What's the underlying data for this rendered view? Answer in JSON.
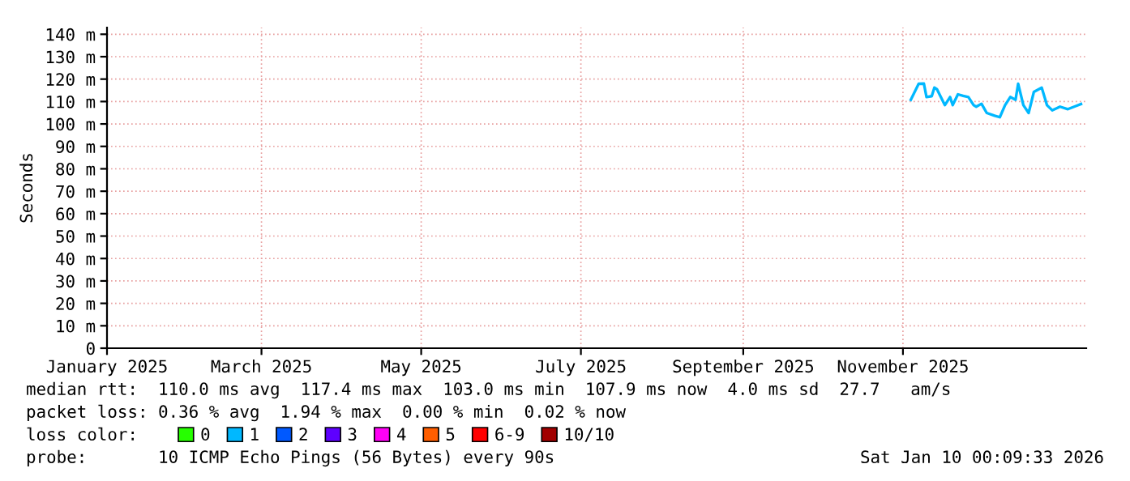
{
  "chart_data": {
    "type": "line",
    "ylabel": "Seconds",
    "xlim": [
      "2025-01-01",
      "2026-01-10"
    ],
    "xticks": [
      {
        "value": "2025-01-01",
        "label": "January 2025"
      },
      {
        "value": "2025-03-01",
        "label": "March 2025"
      },
      {
        "value": "2025-05-01",
        "label": "May 2025"
      },
      {
        "value": "2025-07-01",
        "label": "July 2025"
      },
      {
        "value": "2025-09-01",
        "label": "September 2025"
      },
      {
        "value": "2025-11-01",
        "label": "November 2025"
      }
    ],
    "ylim": [
      0,
      143
    ],
    "yticks": [
      0,
      {
        "value": 10,
        "label": "10 m"
      },
      {
        "value": 20,
        "label": "20 m"
      },
      {
        "value": 30,
        "label": "30 m"
      },
      {
        "value": 40,
        "label": "40 m"
      },
      {
        "value": 50,
        "label": "50 m"
      },
      {
        "value": 60,
        "label": "60 m"
      },
      {
        "value": 70,
        "label": "70 m"
      },
      {
        "value": 80,
        "label": "80 m"
      },
      {
        "value": 90,
        "label": "90 m"
      },
      {
        "value": 100,
        "label": "100 m"
      },
      {
        "value": 110,
        "label": "110 m"
      },
      {
        "value": 120,
        "label": "120 m"
      },
      {
        "value": 130,
        "label": "130 m"
      },
      {
        "value": 140,
        "label": "140 m"
      }
    ],
    "grid": true,
    "legend": "bottom",
    "legend_title": "loss color:",
    "series": [
      {
        "name": "0",
        "color": "#26ff00"
      },
      {
        "name": "1",
        "color": "#00b8ff",
        "x": [
          "2025-11-04",
          "2025-11-07",
          "2025-11-09",
          "2025-11-10",
          "2025-11-12",
          "2025-11-13",
          "2025-11-14",
          "2025-11-17",
          "2025-11-19",
          "2025-11-20",
          "2025-11-22",
          "2025-11-24",
          "2025-11-26",
          "2025-11-28",
          "2025-11-29",
          "2025-12-01",
          "2025-12-03",
          "2025-12-06",
          "2025-12-08",
          "2025-12-10",
          "2025-12-12",
          "2025-12-14",
          "2025-12-15",
          "2025-12-17",
          "2025-12-19",
          "2025-12-21",
          "2025-12-24",
          "2025-12-26",
          "2025-12-28",
          "2025-12-31",
          "2026-01-03",
          "2026-01-06",
          "2026-01-08"
        ],
        "values": [
          110.8,
          117.9,
          118,
          112,
          112.4,
          116.2,
          115.5,
          108.4,
          112,
          108.4,
          113.2,
          112.5,
          112,
          108.4,
          107.7,
          109,
          104.9,
          103.7,
          103,
          108.4,
          112,
          110.8,
          117.9,
          108.4,
          104.9,
          114.3,
          116.2,
          108.4,
          106.1,
          107.7,
          106.6,
          108,
          108.9
        ]
      },
      {
        "name": "2",
        "color": "#0059ff"
      },
      {
        "name": "3",
        "color": "#5e00ff"
      },
      {
        "name": "4",
        "color": "#ff00f5"
      },
      {
        "name": "5",
        "color": "#ff5e00"
      },
      {
        "name": "6-9",
        "color": "#ff0000"
      },
      {
        "name": "10/10",
        "color": "#a10000"
      }
    ],
    "annotations": [
      "median rtt:  110.0 ms avg  117.4 ms max  103.0 ms min  107.9 ms now  4.0 ms sd  27.7   am/s",
      "packet loss: 0.36 % avg  1.94 % max  0.00 % min  0.02 % now",
      "probe:       10 ICMP Echo Pings (56 Bytes) every 90s",
      "Sat Jan 10 00:09:33 2026"
    ]
  }
}
